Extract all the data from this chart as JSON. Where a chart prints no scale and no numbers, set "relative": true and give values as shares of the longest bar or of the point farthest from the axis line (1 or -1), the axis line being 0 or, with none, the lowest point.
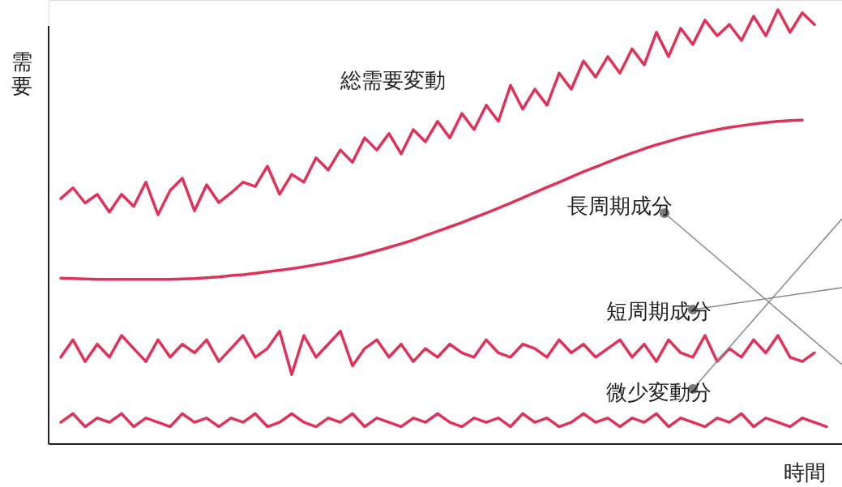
{
  "chart_data": {
    "type": "line",
    "relative": true,
    "xlabel": "時間",
    "ylabel": "需要",
    "marker": "none",
    "line_style": "solid",
    "categories": [
      null,
      null,
      null,
      null,
      null,
      null,
      null,
      null,
      null,
      null,
      null,
      null,
      null,
      null,
      null,
      null,
      null,
      null,
      null,
      null,
      null,
      null,
      null,
      null,
      null,
      null,
      null,
      null,
      null,
      null,
      null,
      null,
      null,
      null,
      null,
      null,
      null,
      null,
      null,
      null,
      null,
      null,
      null,
      null,
      null,
      null,
      null,
      null,
      null,
      null,
      null,
      null,
      null,
      null,
      null,
      null,
      null,
      null,
      null,
      null,
      null,
      null,
      null,
      null
    ],
    "series": [
      {
        "name": "総需要変動",
        "color": "#e23158",
        "values": [
          0.565,
          0.59,
          0.555,
          0.575,
          0.534,
          0.575,
          0.547,
          0.603,
          0.528,
          0.584,
          0.612,
          0.537,
          0.597,
          0.556,
          0.578,
          0.603,
          0.593,
          0.64,
          0.575,
          0.621,
          0.603,
          0.659,
          0.631,
          0.677,
          0.649,
          0.705,
          0.677,
          0.715,
          0.668,
          0.724,
          0.696,
          0.743,
          0.705,
          0.761,
          0.724,
          0.78,
          0.743,
          0.826,
          0.771,
          0.817,
          0.78,
          0.854,
          0.817,
          0.882,
          0.845,
          0.892,
          0.854,
          0.91,
          0.873,
          0.948,
          0.892,
          0.957,
          0.92,
          0.976,
          0.94,
          0.966,
          0.929,
          0.985,
          0.94,
          1.0,
          0.948,
          0.993,
          0.966,
          null
        ]
      },
      {
        "name": "長周期成分",
        "color": "#e23158",
        "values": [
          0.382,
          0.381,
          0.38,
          0.379,
          0.379,
          0.379,
          0.379,
          0.379,
          0.379,
          0.379,
          0.38,
          0.381,
          0.383,
          0.385,
          0.388,
          0.39,
          0.393,
          0.397,
          0.4,
          0.404,
          0.408,
          0.413,
          0.418,
          0.424,
          0.43,
          0.437,
          0.445,
          0.453,
          0.461,
          0.47,
          0.48,
          0.49,
          0.5,
          0.51,
          0.521,
          0.532,
          0.543,
          0.555,
          0.567,
          0.579,
          0.591,
          0.603,
          0.615,
          0.627,
          0.638,
          0.649,
          0.66,
          0.67,
          0.68,
          0.689,
          0.697,
          0.705,
          0.712,
          0.718,
          0.724,
          0.729,
          0.733,
          0.737,
          0.74,
          0.743,
          0.745,
          0.746,
          null,
          null
        ]
      },
      {
        "name": "短周期成分",
        "color": "#e23158",
        "values": [
          0.2,
          0.24,
          0.19,
          0.23,
          0.2,
          0.25,
          0.22,
          0.19,
          0.24,
          0.2,
          0.23,
          0.21,
          0.24,
          0.19,
          0.22,
          0.25,
          0.2,
          0.22,
          0.26,
          0.16,
          0.25,
          0.2,
          0.23,
          0.26,
          0.18,
          0.22,
          0.24,
          0.2,
          0.23,
          0.19,
          0.22,
          0.2,
          0.23,
          0.21,
          0.2,
          0.24,
          0.21,
          0.2,
          0.23,
          0.22,
          0.2,
          0.24,
          0.21,
          0.23,
          0.2,
          0.22,
          0.24,
          0.2,
          0.23,
          0.19,
          0.24,
          0.21,
          0.2,
          0.25,
          0.19,
          0.22,
          0.2,
          0.24,
          0.21,
          0.25,
          0.2,
          0.19,
          0.21,
          null
        ]
      },
      {
        "name": "微少変動分",
        "color": "#e23158",
        "values": [
          0.05,
          0.07,
          0.04,
          0.06,
          0.05,
          0.07,
          0.04,
          0.06,
          0.05,
          0.04,
          0.07,
          0.05,
          0.06,
          0.04,
          0.06,
          0.05,
          0.07,
          0.04,
          0.05,
          0.07,
          0.05,
          0.04,
          0.06,
          0.05,
          0.07,
          0.04,
          0.06,
          0.05,
          0.04,
          0.06,
          0.05,
          0.07,
          0.05,
          0.04,
          0.06,
          0.05,
          0.06,
          0.04,
          0.07,
          0.05,
          0.06,
          0.04,
          0.05,
          0.07,
          0.05,
          0.06,
          0.04,
          0.06,
          0.05,
          0.07,
          0.04,
          0.06,
          0.05,
          0.04,
          0.06,
          0.05,
          0.07,
          0.04,
          0.06,
          0.05,
          0.04,
          0.06,
          0.05,
          0.04
        ]
      }
    ]
  }
}
